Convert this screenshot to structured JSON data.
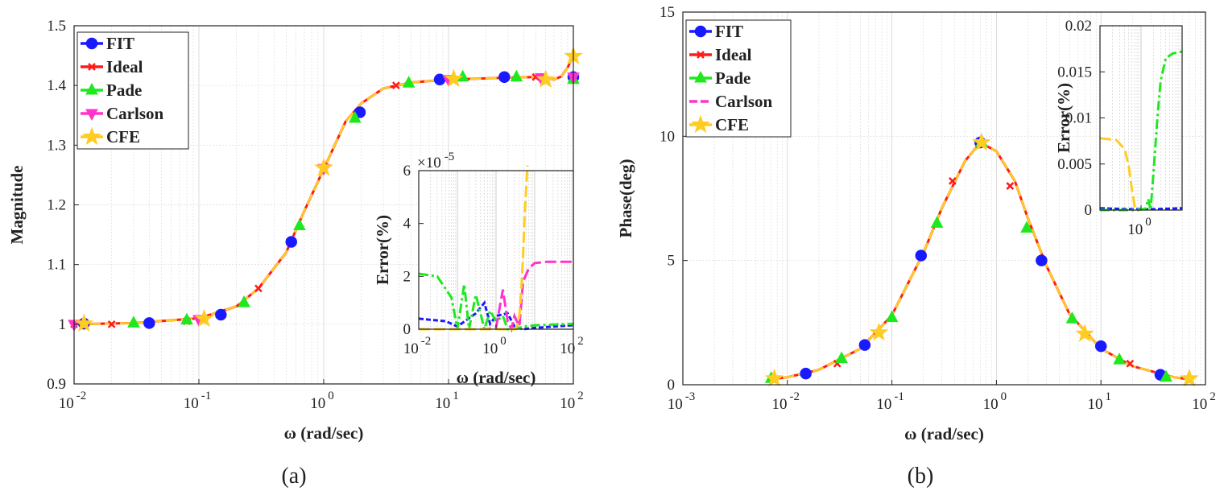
{
  "panel_labels": [
    "(a)",
    "(b)"
  ],
  "chart_data": [
    {
      "type": "line",
      "id": "a-main",
      "title": "",
      "xlabel": "ω (rad/sec)",
      "ylabel": "Magnitude",
      "xscale": "log",
      "xlim": [
        0.01,
        100
      ],
      "ylim": [
        0.9,
        1.5
      ],
      "x_ticks": [
        0.01,
        0.1,
        1,
        10,
        100
      ],
      "x_tick_labels": [
        [
          "10",
          "-2"
        ],
        [
          "10",
          "-1"
        ],
        [
          "10",
          "0"
        ],
        [
          "10",
          "1"
        ],
        [
          "10",
          "2"
        ]
      ],
      "y_ticks": [
        0.9,
        1,
        1.1,
        1.2,
        1.3,
        1.4,
        1.5
      ],
      "y_tick_labels": [
        "0.9",
        "1",
        "1.1",
        "1.2",
        "1.3",
        "1.4",
        "1.5"
      ],
      "grid": true,
      "legend_position": "top-left",
      "legend": [
        "FIT",
        "Ideal",
        "Pade",
        "Carlson",
        "CFE"
      ],
      "series": [
        {
          "name": "FIT",
          "color": "#1a1aff",
          "marker": "circle",
          "x": [
            0.012,
            0.04,
            0.15,
            0.55,
            1.95,
            8.5,
            28,
            100
          ],
          "y": [
            1.001,
            1.002,
            1.016,
            1.138,
            1.355,
            1.41,
            1.414,
            1.414
          ]
        },
        {
          "name": "Ideal",
          "color": "#ff1a1a",
          "marker": "x",
          "x": [
            0.01,
            0.02,
            0.08,
            0.3,
            1.0,
            3.8,
            50,
            100
          ],
          "y": [
            1.0,
            1.0,
            1.005,
            1.06,
            1.262,
            1.4,
            1.414,
            1.414
          ]
        },
        {
          "name": "Pade",
          "color": "#1ee81e",
          "marker": "triangle-up",
          "x": [
            0.03,
            0.08,
            0.23,
            0.64,
            1.78,
            4.8,
            13,
            35,
            100
          ],
          "y": [
            1.002,
            1.007,
            1.036,
            1.165,
            1.345,
            1.404,
            1.414,
            1.414,
            1.41
          ]
        },
        {
          "name": "Carlson",
          "color": "#ff33cc",
          "marker": "triangle-down",
          "x": [
            0.01,
            0.1,
            1.0,
            10,
            55,
            100
          ],
          "y": [
            1.0,
            1.008,
            1.261,
            1.41,
            1.413,
            1.414
          ]
        },
        {
          "name": "CFE",
          "color": "#ffcc22",
          "marker": "star",
          "x": [
            0.012,
            0.11,
            1.0,
            11,
            60,
            100
          ],
          "y": [
            1.001,
            1.009,
            1.262,
            1.411,
            1.41,
            1.449
          ]
        }
      ],
      "curve": {
        "name": "magnitude",
        "x": [
          0.01,
          0.03,
          0.1,
          0.2,
          0.3,
          0.5,
          0.7,
          1.0,
          1.5,
          2,
          3,
          5,
          10,
          30,
          50,
          60,
          70,
          80,
          90,
          100
        ],
        "y": [
          1.0,
          1.002,
          1.01,
          1.03,
          1.06,
          1.12,
          1.19,
          1.26,
          1.34,
          1.37,
          1.395,
          1.405,
          1.41,
          1.413,
          1.414,
          1.412,
          1.41,
          1.415,
          1.43,
          1.449
        ]
      }
    },
    {
      "type": "line",
      "id": "a-inset",
      "xlabel": "ω (rad/sec)",
      "ylabel": "Error(%)",
      "xscale": "log",
      "xlim": [
        0.01,
        100
      ],
      "ylim": [
        0,
        6
      ],
      "y_exponent": [
        "×10",
        "-5"
      ],
      "x_ticks": [
        0.01,
        1,
        100
      ],
      "x_tick_labels": [
        [
          "10",
          "-2"
        ],
        [
          "10",
          "0"
        ],
        [
          "10",
          "2"
        ]
      ],
      "y_ticks": [
        0,
        2,
        4,
        6
      ],
      "y_tick_labels": [
        "0",
        "2",
        "4",
        "6"
      ],
      "series": [
        {
          "name": "FIT",
          "color": "#1a1aff",
          "x": [
            0.01,
            0.05,
            0.1,
            0.3,
            0.5,
            0.7,
            1,
            2,
            3,
            5,
            10,
            30,
            100
          ],
          "y": [
            0.4,
            0.3,
            0.1,
            0.6,
            1.0,
            0.2,
            0.5,
            0.6,
            0.1,
            0.0,
            0.05,
            0.1,
            0.15
          ]
        },
        {
          "name": "Pade",
          "color": "#1ee81e",
          "x": [
            0.01,
            0.03,
            0.07,
            0.1,
            0.15,
            0.2,
            0.3,
            0.5,
            0.7,
            1,
            1.5,
            2,
            3,
            5,
            10,
            100
          ],
          "y": [
            2.1,
            2.0,
            1.2,
            0.0,
            1.7,
            0.0,
            1.3,
            0.0,
            0.7,
            0.3,
            0.5,
            0.0,
            0.0,
            0.1,
            0.15,
            0.2
          ]
        },
        {
          "name": "Carlson",
          "color": "#ff33cc",
          "x": [
            0.01,
            0.5,
            1,
            1.5,
            2,
            2.5,
            3,
            4,
            5,
            7,
            10,
            20,
            100
          ],
          "y": [
            0.0,
            0.0,
            0.05,
            1.5,
            0.3,
            0.0,
            0.5,
            0.1,
            1.8,
            2.3,
            2.5,
            2.55,
            2.55
          ]
        },
        {
          "name": "CFE",
          "color": "#ffcc22",
          "x": [
            0.01,
            1,
            3.0,
            3.5,
            4.0,
            4.5,
            5,
            5.5,
            6.5
          ],
          "y": [
            0.0,
            0.0,
            0.0,
            0.1,
            0.5,
            1.5,
            2.8,
            4.3,
            6.2
          ]
        }
      ]
    },
    {
      "type": "line",
      "id": "b-main",
      "xlabel": "ω (rad/sec)",
      "ylabel": "Phase(deg)",
      "xscale": "log",
      "xlim": [
        0.001,
        100
      ],
      "ylim": [
        0,
        15
      ],
      "x_ticks": [
        0.001,
        0.01,
        0.1,
        1,
        10,
        100
      ],
      "x_tick_labels": [
        [
          "10",
          "-3"
        ],
        [
          "10",
          "-2"
        ],
        [
          "10",
          "-1"
        ],
        [
          "10",
          "0"
        ],
        [
          "10",
          "1"
        ],
        [
          "10",
          "2"
        ]
      ],
      "y_ticks": [
        0,
        5,
        10,
        15
      ],
      "y_tick_labels": [
        "0",
        "5",
        "10",
        "15"
      ],
      "grid": true,
      "legend_position": "top-left",
      "legend": [
        "FIT",
        "Ideal",
        "Pade",
        "Carlson",
        "CFE"
      ],
      "series": [
        {
          "name": "FIT",
          "color": "#1a1aff",
          "marker": "circle",
          "x": [
            0.015,
            0.055,
            0.19,
            0.7,
            2.7,
            10,
            37
          ],
          "y": [
            0.45,
            1.6,
            5.2,
            9.75,
            5.0,
            1.55,
            0.4
          ]
        },
        {
          "name": "Ideal",
          "color": "#ff1a1a",
          "marker": "x",
          "x": [
            0.03,
            0.38,
            1.35,
            19
          ],
          "y": [
            0.85,
            8.2,
            8.0,
            0.85
          ]
        },
        {
          "name": "Pade",
          "color": "#1ee81e",
          "marker": "triangle-up",
          "x": [
            0.007,
            0.033,
            0.1,
            0.27,
            0.72,
            1.95,
            5.3,
            15,
            42
          ],
          "y": [
            0.25,
            1.05,
            2.7,
            6.5,
            9.75,
            6.3,
            2.65,
            1.0,
            0.3
          ]
        },
        {
          "name": "Carlson",
          "color": "#ff33cc",
          "marker": "none",
          "x": [],
          "y": []
        },
        {
          "name": "CFE",
          "color": "#ffcc22",
          "marker": "star",
          "x": [
            0.0075,
            0.075,
            0.72,
            7.0,
            70
          ],
          "y": [
            0.25,
            2.1,
            9.75,
            2.05,
            0.25
          ]
        }
      ],
      "curve": {
        "name": "phase",
        "x": [
          0.0065,
          0.01,
          0.02,
          0.05,
          0.1,
          0.2,
          0.3,
          0.5,
          0.7,
          1,
          1.5,
          2,
          3,
          5,
          10,
          20,
          50,
          75
        ],
        "y": [
          0.2,
          0.3,
          0.6,
          1.45,
          2.8,
          5.3,
          7.1,
          9.0,
          9.75,
          9.4,
          8.2,
          6.7,
          4.8,
          2.85,
          1.45,
          0.75,
          0.3,
          0.2
        ]
      }
    },
    {
      "type": "line",
      "id": "b-inset",
      "xlabel": "",
      "ylabel": "Error(%)",
      "xscale": "log",
      "xlim": [
        0.1,
        10
      ],
      "ylim": [
        0,
        0.02
      ],
      "x_ticks": [
        1
      ],
      "x_tick_labels": [
        [
          "10",
          "0"
        ]
      ],
      "y_ticks": [
        0,
        0.005,
        0.01,
        0.015,
        0.02
      ],
      "y_tick_labels": [
        "0",
        "0.005",
        "0.01",
        "0.015",
        "0.02"
      ],
      "series": [
        {
          "name": "FIT",
          "color": "#1a1aff",
          "x": [
            0.1,
            0.5,
            1,
            2,
            10
          ],
          "y": [
            0.0002,
            0.0001,
            0.0001,
            0.0001,
            0.0002
          ]
        },
        {
          "name": "Pade",
          "color": "#1ee81e",
          "x": [
            0.1,
            0.8,
            1.1,
            1.3,
            1.5,
            1.7,
            2.0,
            2.5,
            3,
            4,
            6,
            10
          ],
          "y": [
            0.0,
            0.0,
            0.0001,
            0.0002,
            0.0012,
            0.0,
            0.004,
            0.01,
            0.014,
            0.0165,
            0.017,
            0.0172
          ]
        },
        {
          "name": "CFE",
          "color": "#ffcc22",
          "x": [
            0.1,
            0.25,
            0.4,
            0.5,
            0.6,
            0.7,
            0.75
          ],
          "y": [
            0.0078,
            0.0076,
            0.0066,
            0.0048,
            0.0022,
            0.0004,
            0.0
          ]
        }
      ]
    }
  ]
}
